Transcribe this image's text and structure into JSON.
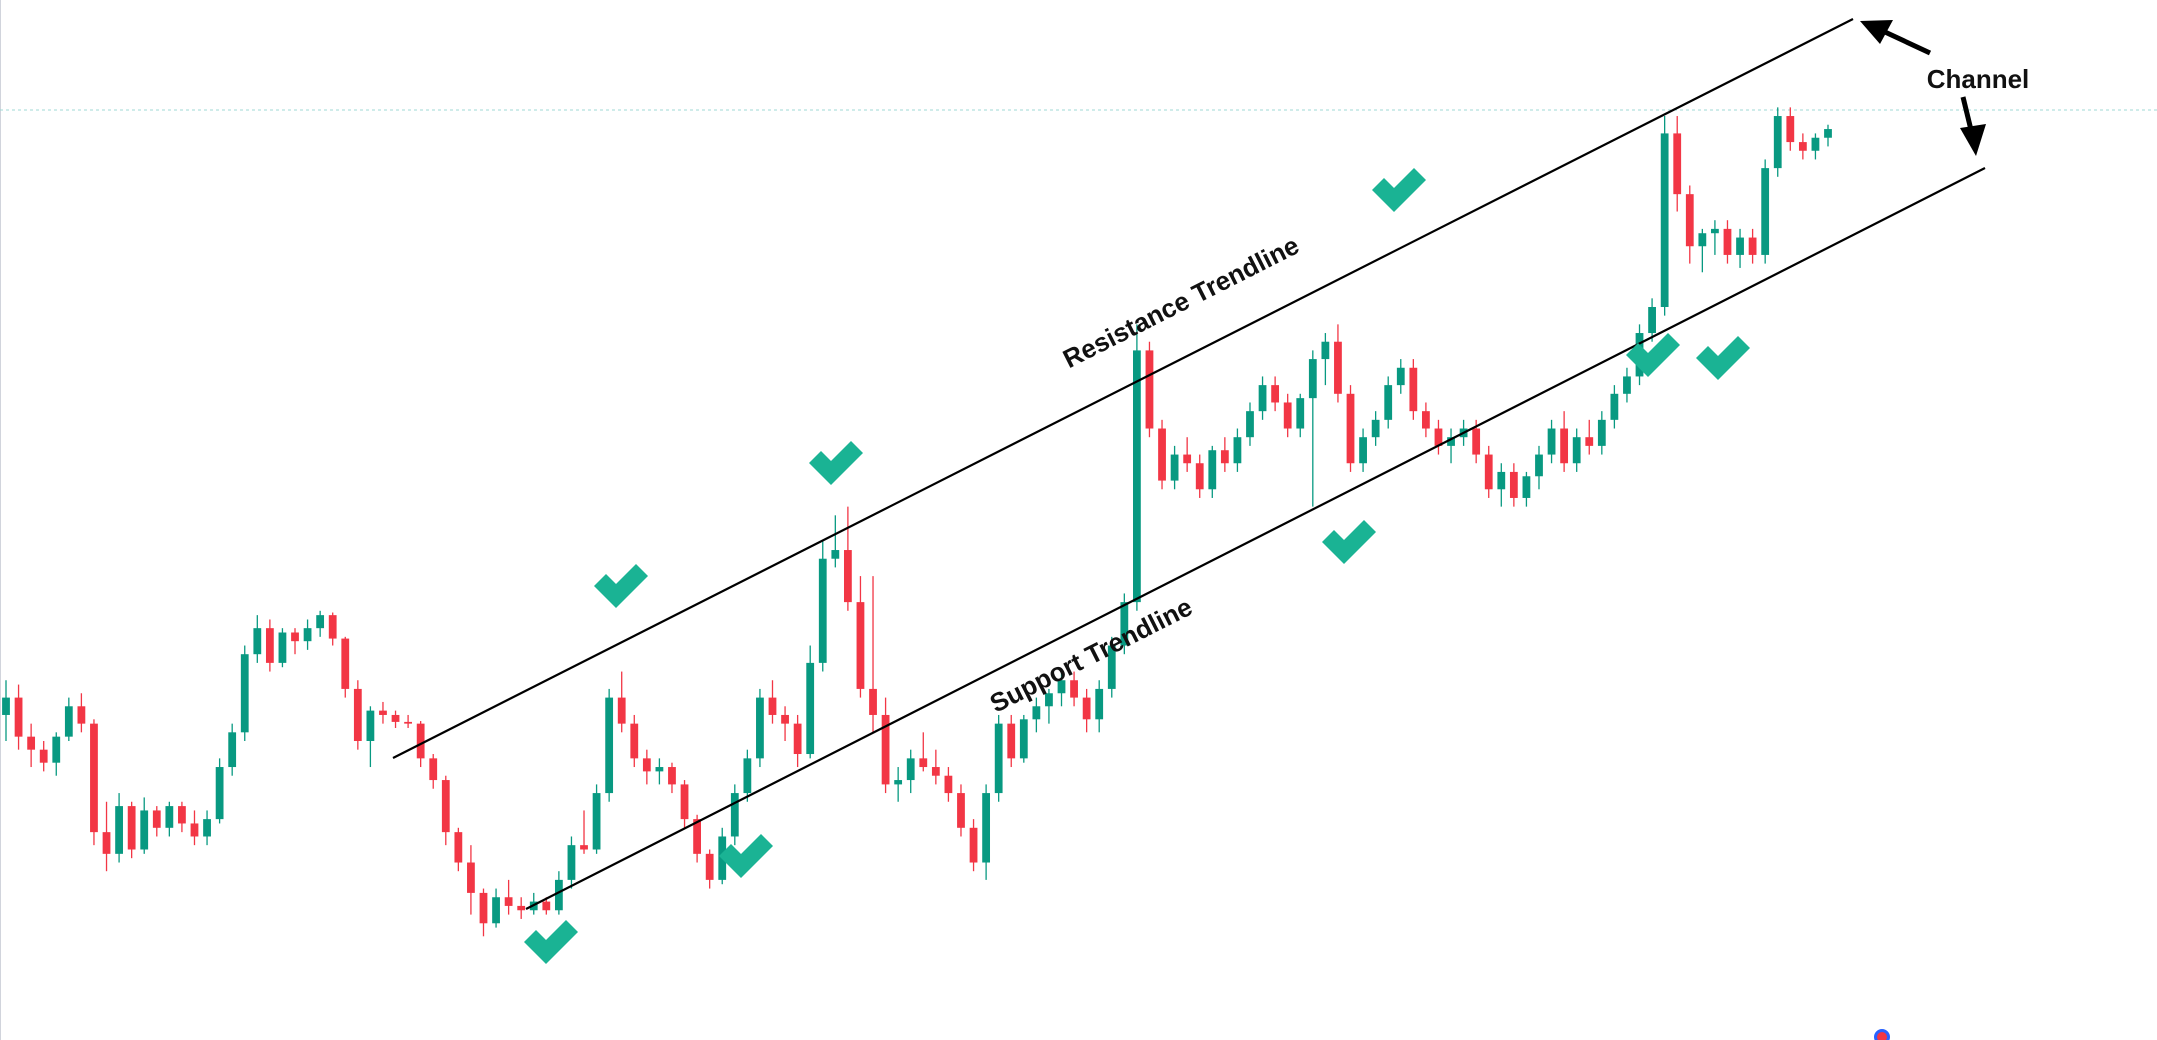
{
  "chart_data": {
    "type": "candlestick",
    "colors": {
      "up": "#089981",
      "down": "#f23645",
      "line": "#000000",
      "check": "#1ab394",
      "guide": "#9fd9d5"
    },
    "y_range": [
      0,
      100
    ],
    "x_range": [
      0,
      200
    ],
    "candles": [
      {
        "o": 28.0,
        "h": 32.0,
        "l": 25.0,
        "c": 30.0
      },
      {
        "o": 30.0,
        "h": 31.5,
        "l": 24.0,
        "c": 25.5
      },
      {
        "o": 25.5,
        "h": 27.0,
        "l": 22.0,
        "c": 24.0
      },
      {
        "o": 24.0,
        "h": 25.0,
        "l": 21.5,
        "c": 22.5
      },
      {
        "o": 22.5,
        "h": 26.0,
        "l": 21.0,
        "c": 25.5
      },
      {
        "o": 25.5,
        "h": 30.0,
        "l": 25.0,
        "c": 29.0
      },
      {
        "o": 29.0,
        "h": 30.5,
        "l": 26.0,
        "c": 27.0
      },
      {
        "o": 27.0,
        "h": 27.5,
        "l": 13.0,
        "c": 14.5
      },
      {
        "o": 14.5,
        "h": 18.0,
        "l": 10.0,
        "c": 12.0
      },
      {
        "o": 12.0,
        "h": 19.0,
        "l": 11.0,
        "c": 17.5
      },
      {
        "o": 17.5,
        "h": 18.0,
        "l": 11.5,
        "c": 12.5
      },
      {
        "o": 12.5,
        "h": 18.5,
        "l": 12.0,
        "c": 17.0
      },
      {
        "o": 17.0,
        "h": 17.5,
        "l": 14.0,
        "c": 15.0
      },
      {
        "o": 15.0,
        "h": 18.0,
        "l": 14.0,
        "c": 17.5
      },
      {
        "o": 17.5,
        "h": 18.0,
        "l": 14.5,
        "c": 15.5
      },
      {
        "o": 15.5,
        "h": 17.0,
        "l": 13.0,
        "c": 14.0
      },
      {
        "o": 14.0,
        "h": 17.0,
        "l": 13.0,
        "c": 16.0
      },
      {
        "o": 16.0,
        "h": 23.0,
        "l": 15.5,
        "c": 22.0
      },
      {
        "o": 22.0,
        "h": 27.0,
        "l": 21.0,
        "c": 26.0
      },
      {
        "o": 26.0,
        "h": 36.0,
        "l": 25.0,
        "c": 35.0
      },
      {
        "o": 35.0,
        "h": 39.5,
        "l": 34.0,
        "c": 38.0
      },
      {
        "o": 38.0,
        "h": 39.0,
        "l": 33.0,
        "c": 34.0
      },
      {
        "o": 34.0,
        "h": 38.0,
        "l": 33.5,
        "c": 37.5
      },
      {
        "o": 37.5,
        "h": 38.0,
        "l": 35.0,
        "c": 36.5
      },
      {
        "o": 36.5,
        "h": 39.0,
        "l": 35.5,
        "c": 38.0
      },
      {
        "o": 38.0,
        "h": 40.0,
        "l": 37.0,
        "c": 39.5
      },
      {
        "o": 39.5,
        "h": 39.8,
        "l": 36.0,
        "c": 36.8
      },
      {
        "o": 36.8,
        "h": 37.0,
        "l": 30.0,
        "c": 31.0
      },
      {
        "o": 31.0,
        "h": 32.0,
        "l": 24.0,
        "c": 25.0
      },
      {
        "o": 25.0,
        "h": 29.0,
        "l": 22.0,
        "c": 28.5
      },
      {
        "o": 28.5,
        "h": 29.5,
        "l": 27.0,
        "c": 28.0
      },
      {
        "o": 28.0,
        "h": 28.5,
        "l": 26.5,
        "c": 27.2
      },
      {
        "o": 27.2,
        "h": 28.0,
        "l": 26.5,
        "c": 27.0
      },
      {
        "o": 27.0,
        "h": 27.3,
        "l": 22.0,
        "c": 23.0
      },
      {
        "o": 23.0,
        "h": 23.5,
        "l": 19.5,
        "c": 20.5
      },
      {
        "o": 20.5,
        "h": 21.0,
        "l": 13.0,
        "c": 14.5
      },
      {
        "o": 14.5,
        "h": 15.0,
        "l": 10.0,
        "c": 11.0
      },
      {
        "o": 11.0,
        "h": 13.0,
        "l": 5.0,
        "c": 7.5
      },
      {
        "o": 7.5,
        "h": 8.0,
        "l": 2.5,
        "c": 4.0
      },
      {
        "o": 4.0,
        "h": 8.0,
        "l": 3.5,
        "c": 7.0
      },
      {
        "o": 7.0,
        "h": 9.0,
        "l": 5.0,
        "c": 6.0
      },
      {
        "o": 6.0,
        "h": 7.0,
        "l": 4.5,
        "c": 5.5
      },
      {
        "o": 5.5,
        "h": 7.5,
        "l": 5.0,
        "c": 6.5
      },
      {
        "o": 6.5,
        "h": 7.0,
        "l": 5.0,
        "c": 5.5
      },
      {
        "o": 5.5,
        "h": 10.0,
        "l": 5.0,
        "c": 9.0
      },
      {
        "o": 9.0,
        "h": 14.0,
        "l": 8.0,
        "c": 13.0
      },
      {
        "o": 13.0,
        "h": 17.0,
        "l": 12.0,
        "c": 12.5
      },
      {
        "o": 12.5,
        "h": 20.0,
        "l": 12.0,
        "c": 19.0
      },
      {
        "o": 19.0,
        "h": 31.0,
        "l": 18.0,
        "c": 30.0
      },
      {
        "o": 30.0,
        "h": 33.0,
        "l": 26.0,
        "c": 27.0
      },
      {
        "o": 27.0,
        "h": 28.0,
        "l": 22.0,
        "c": 23.0
      },
      {
        "o": 23.0,
        "h": 24.0,
        "l": 20.0,
        "c": 21.5
      },
      {
        "o": 21.5,
        "h": 23.0,
        "l": 20.0,
        "c": 22.0
      },
      {
        "o": 22.0,
        "h": 22.5,
        "l": 19.0,
        "c": 20.0
      },
      {
        "o": 20.0,
        "h": 20.5,
        "l": 15.0,
        "c": 16.0
      },
      {
        "o": 16.0,
        "h": 16.5,
        "l": 11.0,
        "c": 12.0
      },
      {
        "o": 12.0,
        "h": 12.5,
        "l": 8.0,
        "c": 9.0
      },
      {
        "o": 9.0,
        "h": 15.0,
        "l": 8.5,
        "c": 14.0
      },
      {
        "o": 14.0,
        "h": 20.0,
        "l": 13.0,
        "c": 19.0
      },
      {
        "o": 19.0,
        "h": 24.0,
        "l": 18.0,
        "c": 23.0
      },
      {
        "o": 23.0,
        "h": 31.0,
        "l": 22.0,
        "c": 30.0
      },
      {
        "o": 30.0,
        "h": 32.0,
        "l": 27.0,
        "c": 28.0
      },
      {
        "o": 28.0,
        "h": 29.0,
        "l": 25.0,
        "c": 27.0
      },
      {
        "o": 27.0,
        "h": 28.0,
        "l": 22.0,
        "c": 23.5
      },
      {
        "o": 23.5,
        "h": 36.0,
        "l": 23.0,
        "c": 34.0
      },
      {
        "o": 34.0,
        "h": 48.0,
        "l": 33.0,
        "c": 46.0
      },
      {
        "o": 46.0,
        "h": 51.0,
        "l": 45.0,
        "c": 47.0
      },
      {
        "o": 47.0,
        "h": 52.0,
        "l": 40.0,
        "c": 41.0
      },
      {
        "o": 41.0,
        "h": 44.0,
        "l": 30.0,
        "c": 31.0
      },
      {
        "o": 31.0,
        "h": 44.0,
        "l": 26.0,
        "c": 28.0
      },
      {
        "o": 28.0,
        "h": 30.0,
        "l": 19.0,
        "c": 20.0
      },
      {
        "o": 20.0,
        "h": 22.0,
        "l": 18.0,
        "c": 20.5
      },
      {
        "o": 20.5,
        "h": 24.0,
        "l": 19.0,
        "c": 23.0
      },
      {
        "o": 23.0,
        "h": 26.0,
        "l": 21.5,
        "c": 22.0
      },
      {
        "o": 22.0,
        "h": 24.0,
        "l": 20.0,
        "c": 21.0
      },
      {
        "o": 21.0,
        "h": 22.0,
        "l": 18.0,
        "c": 19.0
      },
      {
        "o": 19.0,
        "h": 20.0,
        "l": 14.0,
        "c": 15.0
      },
      {
        "o": 15.0,
        "h": 16.0,
        "l": 10.0,
        "c": 11.0
      },
      {
        "o": 11.0,
        "h": 20.0,
        "l": 9.0,
        "c": 19.0
      },
      {
        "o": 19.0,
        "h": 28.0,
        "l": 18.0,
        "c": 27.0
      },
      {
        "o": 27.0,
        "h": 28.0,
        "l": 22.0,
        "c": 23.0
      },
      {
        "o": 23.0,
        "h": 28.0,
        "l": 22.5,
        "c": 27.5
      },
      {
        "o": 27.5,
        "h": 30.0,
        "l": 26.0,
        "c": 29.0
      },
      {
        "o": 29.0,
        "h": 31.0,
        "l": 27.0,
        "c": 30.5
      },
      {
        "o": 30.5,
        "h": 33.0,
        "l": 29.0,
        "c": 32.0
      },
      {
        "o": 32.0,
        "h": 33.0,
        "l": 29.0,
        "c": 30.0
      },
      {
        "o": 30.0,
        "h": 31.0,
        "l": 26.0,
        "c": 27.5
      },
      {
        "o": 27.5,
        "h": 32.0,
        "l": 26.0,
        "c": 31.0
      },
      {
        "o": 31.0,
        "h": 37.0,
        "l": 30.0,
        "c": 36.0
      },
      {
        "o": 36.0,
        "h": 42.0,
        "l": 35.0,
        "c": 41.0
      },
      {
        "o": 41.0,
        "h": 73.0,
        "l": 40.0,
        "c": 70.0
      },
      {
        "o": 70.0,
        "h": 71.0,
        "l": 60.0,
        "c": 61.0
      },
      {
        "o": 61.0,
        "h": 62.0,
        "l": 54.0,
        "c": 55.0
      },
      {
        "o": 55.0,
        "h": 59.0,
        "l": 54.0,
        "c": 58.0
      },
      {
        "o": 58.0,
        "h": 60.0,
        "l": 56.0,
        "c": 57.0
      },
      {
        "o": 57.0,
        "h": 58.0,
        "l": 53.0,
        "c": 54.0
      },
      {
        "o": 54.0,
        "h": 59.0,
        "l": 53.0,
        "c": 58.5
      },
      {
        "o": 58.5,
        "h": 60.0,
        "l": 56.0,
        "c": 57.0
      },
      {
        "o": 57.0,
        "h": 61.0,
        "l": 56.0,
        "c": 60.0
      },
      {
        "o": 60.0,
        "h": 64.0,
        "l": 59.0,
        "c": 63.0
      },
      {
        "o": 63.0,
        "h": 67.0,
        "l": 62.0,
        "c": 66.0
      },
      {
        "o": 66.0,
        "h": 67.0,
        "l": 63.0,
        "c": 64.0
      },
      {
        "o": 64.0,
        "h": 65.0,
        "l": 60.0,
        "c": 61.0
      },
      {
        "o": 61.0,
        "h": 65.0,
        "l": 60.0,
        "c": 64.5
      },
      {
        "o": 64.5,
        "h": 70.0,
        "l": 52.0,
        "c": 69.0
      },
      {
        "o": 69.0,
        "h": 72.0,
        "l": 66.0,
        "c": 71.0
      },
      {
        "o": 71.0,
        "h": 73.0,
        "l": 64.0,
        "c": 65.0
      },
      {
        "o": 65.0,
        "h": 66.0,
        "l": 56.0,
        "c": 57.0
      },
      {
        "o": 57.0,
        "h": 61.0,
        "l": 56.0,
        "c": 60.0
      },
      {
        "o": 60.0,
        "h": 63.0,
        "l": 59.0,
        "c": 62.0
      },
      {
        "o": 62.0,
        "h": 67.0,
        "l": 61.0,
        "c": 66.0
      },
      {
        "o": 66.0,
        "h": 69.0,
        "l": 65.0,
        "c": 68.0
      },
      {
        "o": 68.0,
        "h": 69.0,
        "l": 62.0,
        "c": 63.0
      },
      {
        "o": 63.0,
        "h": 64.0,
        "l": 60.0,
        "c": 61.0
      },
      {
        "o": 61.0,
        "h": 62.0,
        "l": 58.0,
        "c": 59.0
      },
      {
        "o": 59.0,
        "h": 61.0,
        "l": 57.0,
        "c": 60.0
      },
      {
        "o": 60.0,
        "h": 62.0,
        "l": 59.0,
        "c": 61.0
      },
      {
        "o": 61.0,
        "h": 62.0,
        "l": 57.0,
        "c": 58.0
      },
      {
        "o": 58.0,
        "h": 59.0,
        "l": 53.0,
        "c": 54.0
      },
      {
        "o": 54.0,
        "h": 57.0,
        "l": 52.0,
        "c": 56.0
      },
      {
        "o": 56.0,
        "h": 57.0,
        "l": 52.0,
        "c": 53.0
      },
      {
        "o": 53.0,
        "h": 56.0,
        "l": 52.0,
        "c": 55.5
      },
      {
        "o": 55.5,
        "h": 59.0,
        "l": 54.0,
        "c": 58.0
      },
      {
        "o": 58.0,
        "h": 62.0,
        "l": 57.0,
        "c": 61.0
      },
      {
        "o": 61.0,
        "h": 63.0,
        "l": 56.0,
        "c": 57.0
      },
      {
        "o": 57.0,
        "h": 61.0,
        "l": 56.0,
        "c": 60.0
      },
      {
        "o": 60.0,
        "h": 62.0,
        "l": 58.0,
        "c": 59.0
      },
      {
        "o": 59.0,
        "h": 63.0,
        "l": 58.0,
        "c": 62.0
      },
      {
        "o": 62.0,
        "h": 66.0,
        "l": 61.0,
        "c": 65.0
      },
      {
        "o": 65.0,
        "h": 68.0,
        "l": 64.0,
        "c": 67.0
      },
      {
        "o": 67.0,
        "h": 73.0,
        "l": 66.0,
        "c": 72.0
      },
      {
        "o": 72.0,
        "h": 76.0,
        "l": 71.0,
        "c": 75.0
      },
      {
        "o": 75.0,
        "h": 97.0,
        "l": 74.0,
        "c": 95.0
      },
      {
        "o": 95.0,
        "h": 97.0,
        "l": 86.0,
        "c": 88.0
      },
      {
        "o": 88.0,
        "h": 89.0,
        "l": 80.0,
        "c": 82.0
      },
      {
        "o": 82.0,
        "h": 84.0,
        "l": 79.0,
        "c": 83.5
      },
      {
        "o": 83.5,
        "h": 85.0,
        "l": 81.0,
        "c": 84.0
      },
      {
        "o": 84.0,
        "h": 85.0,
        "l": 80.0,
        "c": 81.0
      },
      {
        "o": 81.0,
        "h": 84.0,
        "l": 79.5,
        "c": 83.0
      },
      {
        "o": 83.0,
        "h": 84.0,
        "l": 80.0,
        "c": 81.0
      },
      {
        "o": 81.0,
        "h": 92.0,
        "l": 80.0,
        "c": 91.0
      },
      {
        "o": 91.0,
        "h": 98.0,
        "l": 90.0,
        "c": 97.0
      },
      {
        "o": 97.0,
        "h": 98.0,
        "l": 93.0,
        "c": 94.0
      },
      {
        "o": 94.0,
        "h": 95.0,
        "l": 92.0,
        "c": 93.0
      },
      {
        "o": 93.0,
        "h": 95.0,
        "l": 92.0,
        "c": 94.5
      },
      {
        "o": 94.5,
        "h": 96.0,
        "l": 93.5,
        "c": 95.5
      }
    ],
    "trendlines": [
      {
        "name": "resistance",
        "from": {
          "x": 0.1,
          "y": 42.0
        },
        "to": {
          "x": 1.0,
          "y": 100.0
        }
      },
      {
        "name": "support",
        "from": {
          "x": 0.2,
          "y": 8.0
        },
        "to": {
          "x": 1.1,
          "y": 66.0
        }
      }
    ],
    "labels": {
      "resistance": "Resistance Trendline",
      "support": "Support Trendline",
      "channel": "Channel"
    },
    "touch_points": 8
  }
}
